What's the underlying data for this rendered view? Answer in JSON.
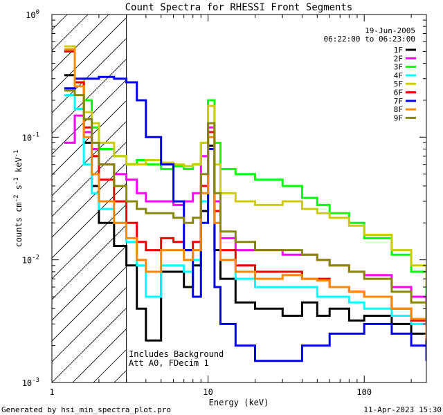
{
  "chart_data": {
    "type": "line",
    "title": "Count Spectra for RHESSI Front Segments",
    "xlabel": "Energy (keV)",
    "ylabel": "counts cm-2 s-1 keV-1",
    "xscale": "log",
    "yscale": "log",
    "xlim": [
      1,
      250
    ],
    "ylim": [
      0.001,
      1
    ],
    "x_ticks": [
      {
        "value": 1,
        "label": "1"
      },
      {
        "value": 10,
        "label": "10"
      },
      {
        "value": 100,
        "label": "100"
      }
    ],
    "y_ticks": [
      {
        "value": 0.001,
        "label": "10",
        "exp": "-3"
      },
      {
        "value": 0.01,
        "label": "10",
        "exp": "-2"
      },
      {
        "value": 0.1,
        "label": "10",
        "exp": "-1"
      },
      {
        "value": 1,
        "label": "10",
        "exp": "0"
      }
    ],
    "shaded_region_xmax": 3,
    "annotations": {
      "date": "19-Jun-2005",
      "time_range": "06:22:00 to 06:23:00",
      "background_note": "Includes Background",
      "attenuator_note": "Att A0, FDecim 1"
    },
    "footer_left": "Generated by hsi_min_spectra_plot.pro",
    "footer_right": "11-Apr-2023 15:30",
    "series": [
      {
        "name": "1F",
        "color": "#000000",
        "x": [
          1.2,
          1.4,
          1.6,
          1.8,
          2.0,
          2.5,
          3.0,
          3.5,
          4.0,
          5.0,
          6.0,
          7.0,
          8.0,
          9.0,
          10.0,
          11.0,
          12.0,
          15.0,
          20.0,
          30.0,
          40.0,
          50.0,
          60.0,
          80.0,
          100.0,
          150.0,
          200.0,
          250.0
        ],
        "values": [
          0.32,
          0.28,
          0.09,
          0.04,
          0.02,
          0.013,
          0.009,
          0.004,
          0.0022,
          0.008,
          0.008,
          0.006,
          0.009,
          0.025,
          0.085,
          0.012,
          0.007,
          0.0045,
          0.004,
          0.0035,
          0.0045,
          0.0035,
          0.004,
          0.0032,
          0.0035,
          0.003,
          0.0025,
          0.0015
        ]
      },
      {
        "name": "2F",
        "color": "#ff00ff",
        "x": [
          1.2,
          1.4,
          1.6,
          1.8,
          2.0,
          2.5,
          3.0,
          3.5,
          4.0,
          5.0,
          6.0,
          7.0,
          8.0,
          9.0,
          10.0,
          11.0,
          12.0,
          15.0,
          20.0,
          30.0,
          40.0,
          50.0,
          60.0,
          80.0,
          100.0,
          150.0,
          200.0,
          250.0
        ],
        "values": [
          0.09,
          0.15,
          0.11,
          0.08,
          0.06,
          0.05,
          0.045,
          0.035,
          0.03,
          0.03,
          0.028,
          0.03,
          0.035,
          0.07,
          0.12,
          0.03,
          0.015,
          0.012,
          0.012,
          0.011,
          0.011,
          0.01,
          0.009,
          0.008,
          0.0075,
          0.006,
          0.005,
          0.004
        ]
      },
      {
        "name": "3F",
        "color": "#00ff00",
        "x": [
          1.2,
          1.4,
          1.6,
          1.8,
          2.0,
          2.5,
          3.0,
          3.5,
          4.0,
          5.0,
          6.0,
          7.0,
          8.0,
          9.0,
          10.0,
          11.0,
          12.0,
          15.0,
          20.0,
          30.0,
          40.0,
          50.0,
          60.0,
          80.0,
          100.0,
          150.0,
          200.0,
          250.0
        ],
        "values": [
          0.25,
          0.28,
          0.2,
          0.12,
          0.08,
          0.07,
          0.06,
          0.065,
          0.06,
          0.055,
          0.058,
          0.055,
          0.06,
          0.09,
          0.2,
          0.09,
          0.055,
          0.05,
          0.045,
          0.04,
          0.032,
          0.028,
          0.024,
          0.02,
          0.015,
          0.011,
          0.008,
          0.005
        ]
      },
      {
        "name": "4F",
        "color": "#00ffff",
        "x": [
          1.2,
          1.4,
          1.6,
          1.8,
          2.0,
          2.5,
          3.0,
          3.5,
          4.0,
          5.0,
          6.0,
          7.0,
          8.0,
          9.0,
          10.0,
          11.0,
          12.0,
          15.0,
          20.0,
          30.0,
          40.0,
          50.0,
          60.0,
          80.0,
          100.0,
          150.0,
          200.0,
          250.0
        ],
        "values": [
          0.22,
          0.17,
          0.06,
          0.035,
          0.026,
          0.02,
          0.014,
          0.009,
          0.005,
          0.009,
          0.009,
          0.008,
          0.01,
          0.03,
          0.1,
          0.02,
          0.01,
          0.007,
          0.006,
          0.006,
          0.006,
          0.005,
          0.005,
          0.0045,
          0.004,
          0.0035,
          0.003,
          0.0025
        ]
      },
      {
        "name": "5F",
        "color": "#cccc00",
        "x": [
          1.2,
          1.4,
          1.6,
          1.8,
          2.0,
          2.5,
          3.0,
          3.5,
          4.0,
          5.0,
          6.0,
          7.0,
          8.0,
          9.0,
          10.0,
          11.0,
          12.0,
          15.0,
          20.0,
          30.0,
          40.0,
          50.0,
          60.0,
          80.0,
          100.0,
          150.0,
          200.0,
          250.0
        ],
        "values": [
          0.55,
          0.3,
          0.16,
          0.13,
          0.09,
          0.07,
          0.06,
          0.06,
          0.065,
          0.062,
          0.06,
          0.058,
          0.06,
          0.09,
          0.18,
          0.06,
          0.035,
          0.03,
          0.028,
          0.03,
          0.026,
          0.024,
          0.022,
          0.019,
          0.016,
          0.012,
          0.009,
          0.006
        ]
      },
      {
        "name": "6F",
        "color": "#ee0000",
        "x": [
          1.2,
          1.4,
          1.6,
          1.8,
          2.0,
          2.5,
          3.0,
          3.5,
          4.0,
          5.0,
          6.0,
          7.0,
          8.0,
          9.0,
          10.0,
          11.0,
          12.0,
          15.0,
          20.0,
          30.0,
          40.0,
          50.0,
          60.0,
          80.0,
          100.0,
          150.0,
          200.0,
          250.0
        ],
        "values": [
          0.5,
          0.28,
          0.12,
          0.07,
          0.045,
          0.03,
          0.02,
          0.014,
          0.012,
          0.015,
          0.014,
          0.012,
          0.014,
          0.04,
          0.11,
          0.025,
          0.012,
          0.009,
          0.008,
          0.008,
          0.007,
          0.007,
          0.006,
          0.0055,
          0.005,
          0.004,
          0.0032,
          0.0022
        ]
      },
      {
        "name": "7F",
        "color": "#0000ee",
        "x": [
          1.2,
          1.4,
          1.6,
          1.8,
          2.0,
          2.5,
          3.0,
          3.5,
          4.0,
          5.0,
          6.0,
          7.0,
          8.0,
          9.0,
          10.0,
          11.0,
          12.0,
          15.0,
          20.0,
          30.0,
          40.0,
          50.0,
          60.0,
          80.0,
          100.0,
          150.0,
          200.0,
          250.0
        ],
        "values": [
          0.25,
          0.3,
          0.3,
          0.3,
          0.31,
          0.3,
          0.28,
          0.2,
          0.1,
          0.06,
          0.03,
          0.012,
          0.005,
          0.02,
          0.08,
          0.006,
          0.003,
          0.002,
          0.0015,
          0.0015,
          0.002,
          0.002,
          0.0025,
          0.0025,
          0.003,
          0.0025,
          0.002,
          0.0015
        ]
      },
      {
        "name": "8F",
        "color": "#ff8800",
        "x": [
          1.2,
          1.4,
          1.6,
          1.8,
          2.0,
          2.5,
          3.0,
          3.5,
          4.0,
          5.0,
          6.0,
          7.0,
          8.0,
          9.0,
          10.0,
          11.0,
          12.0,
          15.0,
          20.0,
          30.0,
          40.0,
          50.0,
          60.0,
          80.0,
          100.0,
          150.0,
          200.0,
          250.0
        ],
        "values": [
          0.52,
          0.26,
          0.1,
          0.05,
          0.03,
          0.02,
          0.015,
          0.01,
          0.008,
          0.012,
          0.012,
          0.01,
          0.012,
          0.035,
          0.1,
          0.02,
          0.01,
          0.008,
          0.007,
          0.0075,
          0.007,
          0.0068,
          0.006,
          0.0055,
          0.005,
          0.004,
          0.0033,
          0.0023
        ]
      },
      {
        "name": "9F",
        "color": "#888800",
        "x": [
          1.2,
          1.4,
          1.6,
          1.8,
          2.0,
          2.5,
          3.0,
          3.5,
          4.0,
          5.0,
          6.0,
          7.0,
          8.0,
          9.0,
          10.0,
          11.0,
          12.0,
          15.0,
          20.0,
          30.0,
          40.0,
          50.0,
          60.0,
          80.0,
          100.0,
          150.0,
          200.0,
          250.0
        ],
        "values": [
          0.24,
          0.22,
          0.14,
          0.09,
          0.06,
          0.04,
          0.03,
          0.026,
          0.024,
          0.024,
          0.022,
          0.02,
          0.022,
          0.05,
          0.13,
          0.035,
          0.017,
          0.014,
          0.012,
          0.012,
          0.011,
          0.01,
          0.009,
          0.008,
          0.007,
          0.0055,
          0.0045,
          0.003
        ]
      }
    ]
  }
}
